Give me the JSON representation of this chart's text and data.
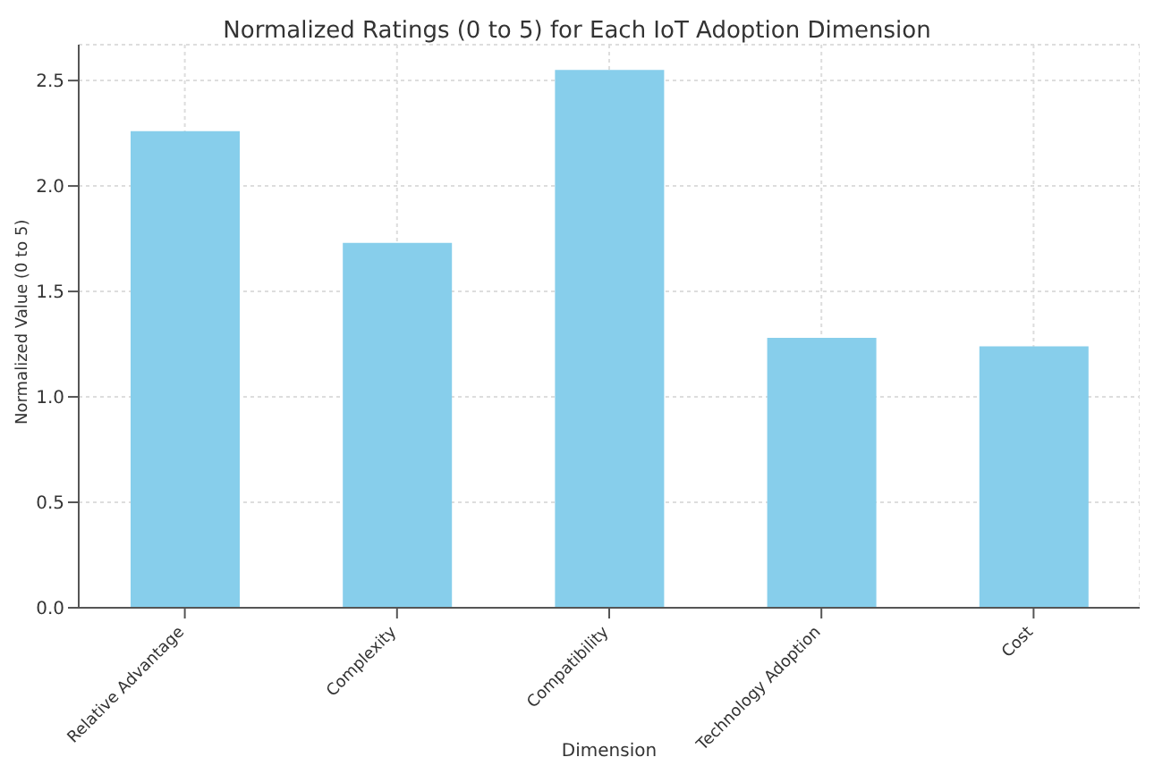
{
  "chart_data": {
    "type": "bar",
    "title": "Normalized Ratings (0 to 5) for Each IoT Adoption Dimension",
    "xlabel": "Dimension",
    "ylabel": "Normalized Value (0 to 5)",
    "categories": [
      "Relative Advantage",
      "Complexity",
      "Compatibility",
      "Technology Adoption",
      "Cost"
    ],
    "values": [
      2.26,
      1.73,
      2.55,
      1.28,
      1.24
    ],
    "color": "#87ceeb",
    "ylim": [
      0,
      2.67
    ],
    "yticks": [
      {
        "value": 0,
        "label": "0.0"
      },
      {
        "value": 0.5,
        "label": "0.5"
      },
      {
        "value": 1,
        "label": "1.0"
      },
      {
        "value": 1.5,
        "label": "1.5"
      },
      {
        "value": 2,
        "label": "2.0"
      },
      {
        "value": 2.5,
        "label": "2.5"
      }
    ],
    "grid": true
  }
}
